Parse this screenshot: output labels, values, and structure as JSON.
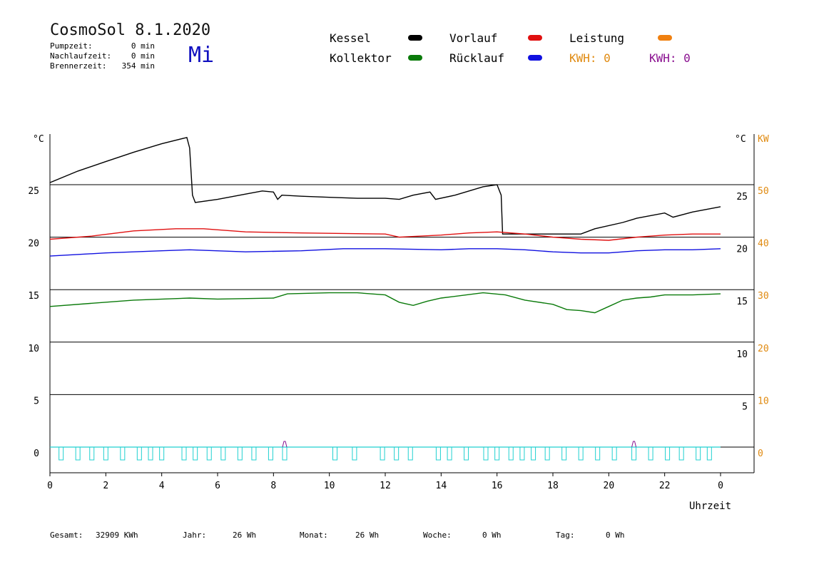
{
  "header": {
    "title": "CosmoSol 8.1.2020",
    "weekday": "Mi",
    "pumpzeit_label": "Pumpzeit:",
    "pumpzeit_value": "0 min",
    "nachlaufzeit_label": "Nachlaufzeit:",
    "nachlaufzeit_value": "0 min",
    "brennerzeit_label": "Brennerzeit:",
    "brennerzeit_value": "354 min"
  },
  "legend": {
    "kessel": "Kessel",
    "kollektor": "Kollektor",
    "vorlauf": "Vorlauf",
    "ruecklauf": "Rücklauf",
    "leistung": "Leistung",
    "kwh1": "KWH: 0",
    "kwh2": "KWH: 0",
    "colors": {
      "kessel": "#000000",
      "kollektor": "#0a7a0a",
      "vorlauf": "#e01010",
      "ruecklauf": "#1010e0",
      "leistung": "#f08010",
      "kwh1": "#e08a10",
      "kwh2": "#8a1090",
      "pump": "#20d0d0"
    }
  },
  "footer": {
    "gesamt_label": "Gesamt:",
    "gesamt_value": "32909 KWh",
    "jahr_label": "Jahr:",
    "jahr_value": "26 Wh",
    "monat_label": "Monat:",
    "monat_value": "26 Wh",
    "woche_label": "Woche:",
    "woche_value": "0 Wh",
    "tag_label": "Tag:",
    "tag_value": "0 Wh"
  },
  "chart_data": {
    "type": "line",
    "xlabel": "Uhrzeit",
    "ylabel_left": "°C",
    "ylabel_right_temp": "°C",
    "ylabel_right_power": "KW",
    "x_ticks": [
      "0",
      "2",
      "4",
      "6",
      "8",
      "10",
      "12",
      "14",
      "16",
      "18",
      "20",
      "22",
      "0"
    ],
    "xlim": [
      0,
      24
    ],
    "ylim": [
      -2.5,
      32
    ],
    "y_ticks_left": [
      0,
      5,
      10,
      15,
      20,
      25
    ],
    "y_ticks_right_temp": [
      5,
      10,
      15,
      20,
      25
    ],
    "y_ticks_right_power": [
      0,
      10,
      20,
      30,
      40,
      50
    ],
    "grid": "horizontal",
    "series": [
      {
        "name": "Kessel",
        "color": "#000000",
        "points": [
          [
            0,
            25.2
          ],
          [
            1,
            26.3
          ],
          [
            2,
            27.2
          ],
          [
            3,
            28.1
          ],
          [
            4,
            28.9
          ],
          [
            4.9,
            29.5
          ],
          [
            5.0,
            28.5
          ],
          [
            5.1,
            24.0
          ],
          [
            5.2,
            23.3
          ],
          [
            6,
            23.6
          ],
          [
            7,
            24.1
          ],
          [
            7.6,
            24.4
          ],
          [
            8.0,
            24.3
          ],
          [
            8.15,
            23.6
          ],
          [
            8.3,
            24.0
          ],
          [
            9,
            23.9
          ],
          [
            10,
            23.8
          ],
          [
            11,
            23.7
          ],
          [
            12,
            23.7
          ],
          [
            12.5,
            23.6
          ],
          [
            13,
            24.0
          ],
          [
            13.6,
            24.3
          ],
          [
            13.8,
            23.6
          ],
          [
            14.5,
            24.0
          ],
          [
            15.5,
            24.8
          ],
          [
            16.0,
            25.0
          ],
          [
            16.15,
            24.0
          ],
          [
            16.2,
            20.3
          ],
          [
            17,
            20.3
          ],
          [
            18,
            20.3
          ],
          [
            19,
            20.3
          ],
          [
            19.5,
            20.8
          ],
          [
            20.5,
            21.4
          ],
          [
            21,
            21.8
          ],
          [
            22,
            22.3
          ],
          [
            22.3,
            21.9
          ],
          [
            23,
            22.4
          ],
          [
            24,
            22.9
          ]
        ]
      },
      {
        "name": "Vorlauf",
        "color": "#e01010",
        "points": [
          [
            0,
            19.8
          ],
          [
            1.5,
            20.1
          ],
          [
            3,
            20.6
          ],
          [
            4.5,
            20.8
          ],
          [
            5.5,
            20.8
          ],
          [
            7,
            20.5
          ],
          [
            9,
            20.4
          ],
          [
            12,
            20.3
          ],
          [
            12.5,
            20.0
          ],
          [
            14,
            20.2
          ],
          [
            15,
            20.4
          ],
          [
            16,
            20.5
          ],
          [
            17,
            20.3
          ],
          [
            18,
            20.0
          ],
          [
            19,
            19.8
          ],
          [
            20,
            19.7
          ],
          [
            21,
            20.0
          ],
          [
            22,
            20.2
          ],
          [
            23,
            20.3
          ],
          [
            24,
            20.3
          ]
        ]
      },
      {
        "name": "Rücklauf",
        "color": "#1010e0",
        "points": [
          [
            0,
            18.2
          ],
          [
            2,
            18.5
          ],
          [
            4,
            18.7
          ],
          [
            5,
            18.8
          ],
          [
            7,
            18.6
          ],
          [
            9,
            18.7
          ],
          [
            10.5,
            18.9
          ],
          [
            12,
            18.9
          ],
          [
            14,
            18.8
          ],
          [
            15,
            18.9
          ],
          [
            16,
            18.9
          ],
          [
            17,
            18.8
          ],
          [
            18,
            18.6
          ],
          [
            19,
            18.5
          ],
          [
            20,
            18.5
          ],
          [
            21,
            18.7
          ],
          [
            22,
            18.8
          ],
          [
            23,
            18.8
          ],
          [
            24,
            18.9
          ]
        ]
      },
      {
        "name": "Kollektor",
        "color": "#0a7a0a",
        "points": [
          [
            0,
            13.4
          ],
          [
            1.5,
            13.7
          ],
          [
            3,
            14.0
          ],
          [
            5,
            14.2
          ],
          [
            6,
            14.1
          ],
          [
            8,
            14.2
          ],
          [
            8.5,
            14.6
          ],
          [
            10,
            14.7
          ],
          [
            11,
            14.7
          ],
          [
            12,
            14.5
          ],
          [
            12.5,
            13.8
          ],
          [
            13,
            13.5
          ],
          [
            13.5,
            13.9
          ],
          [
            14,
            14.2
          ],
          [
            15.5,
            14.7
          ],
          [
            16.3,
            14.5
          ],
          [
            17,
            14.0
          ],
          [
            18,
            13.6
          ],
          [
            18.5,
            13.1
          ],
          [
            19,
            13.0
          ],
          [
            19.5,
            12.8
          ],
          [
            20,
            13.4
          ],
          [
            20.5,
            14.0
          ],
          [
            21,
            14.2
          ],
          [
            21.5,
            14.3
          ],
          [
            22,
            14.5
          ],
          [
            23,
            14.5
          ],
          [
            24,
            14.6
          ]
        ]
      }
    ],
    "pump_pulses_x": [
      0.4,
      1.0,
      1.5,
      2.0,
      2.6,
      3.2,
      3.6,
      4.0,
      4.8,
      5.2,
      5.7,
      6.2,
      6.8,
      7.3,
      7.9,
      8.4,
      10.2,
      10.9,
      11.9,
      12.4,
      12.9,
      13.9,
      14.3,
      14.9,
      15.6,
      16.0,
      16.5,
      16.9,
      17.3,
      17.8,
      18.4,
      19.0,
      19.6,
      20.2,
      20.9,
      21.5,
      22.1,
      22.6,
      23.2,
      23.6
    ]
  }
}
